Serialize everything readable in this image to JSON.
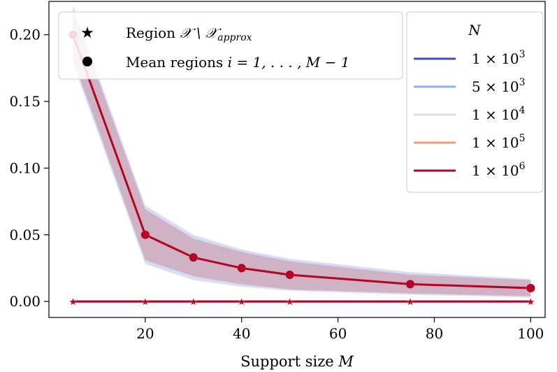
{
  "chart_data": {
    "type": "line",
    "xlabel_text": "Support size ",
    "xlabel_var": "M",
    "ylabel": "",
    "xlim": [
      0,
      103
    ],
    "ylim": [
      -0.012,
      0.225
    ],
    "xticks": [
      20,
      40,
      60,
      80,
      100
    ],
    "xtick_labels": [
      "20",
      "40",
      "60",
      "80",
      "100"
    ],
    "yticks": [
      0.0,
      0.05,
      0.1,
      0.15,
      0.2
    ],
    "ytick_labels": [
      "0.00",
      "0.05",
      "0.10",
      "0.15",
      "0.20"
    ],
    "grid": false,
    "x": [
      5,
      20,
      30,
      40,
      50,
      75,
      100
    ],
    "series": [
      {
        "name": "1 × 10^3",
        "color": "#3b4cc0",
        "mean_values": [
          0.2,
          0.05,
          0.033,
          0.025,
          0.02,
          0.013,
          0.01
        ],
        "band_lower": [
          0.178,
          0.028,
          0.016,
          0.011,
          0.008,
          0.005,
          0.003
        ],
        "band_upper": [
          0.222,
          0.072,
          0.05,
          0.039,
          0.032,
          0.022,
          0.017
        ],
        "star_values": [
          0,
          0,
          0,
          0,
          0,
          0,
          0
        ]
      },
      {
        "name": "5 × 10^3",
        "color": "#8db0fe",
        "mean_values": [
          0.2,
          0.05,
          0.033,
          0.025,
          0.02,
          0.013,
          0.01
        ],
        "band_lower": [
          0.18,
          0.03,
          0.018,
          0.012,
          0.009,
          0.006,
          0.004
        ],
        "band_upper": [
          0.22,
          0.07,
          0.048,
          0.038,
          0.031,
          0.021,
          0.016
        ],
        "star_values": [
          0,
          0,
          0,
          0,
          0,
          0,
          0
        ]
      },
      {
        "name": "1 × 10^4",
        "color": "#dddddd",
        "mean_values": [
          0.2,
          0.05,
          0.033,
          0.025,
          0.02,
          0.013,
          0.01
        ],
        "band_lower": [
          0.182,
          0.031,
          0.019,
          0.013,
          0.009,
          0.006,
          0.004
        ],
        "band_upper": [
          0.218,
          0.069,
          0.047,
          0.037,
          0.03,
          0.02,
          0.016
        ],
        "star_values": [
          0,
          0,
          0,
          0,
          0,
          0,
          0
        ]
      },
      {
        "name": "1 × 10^5",
        "color": "#f49a7b",
        "mean_values": [
          0.2,
          0.05,
          0.033,
          0.025,
          0.02,
          0.013,
          0.01
        ],
        "band_lower": [
          0.182,
          0.031,
          0.019,
          0.013,
          0.009,
          0.006,
          0.004
        ],
        "band_upper": [
          0.218,
          0.069,
          0.047,
          0.037,
          0.03,
          0.02,
          0.016
        ],
        "star_values": [
          0,
          0,
          0,
          0,
          0,
          0,
          0
        ]
      },
      {
        "name": "1 × 10^6",
        "color": "#b40426",
        "mean_values": [
          0.2,
          0.05,
          0.033,
          0.025,
          0.02,
          0.013,
          0.01
        ],
        "band_lower": [
          0.182,
          0.031,
          0.019,
          0.013,
          0.009,
          0.006,
          0.004
        ],
        "band_upper": [
          0.218,
          0.069,
          0.047,
          0.037,
          0.03,
          0.02,
          0.016
        ],
        "star_values": [
          0,
          0,
          0,
          0,
          0,
          0,
          0
        ]
      }
    ],
    "marker_legend": {
      "star_label_text": "Region ",
      "star_label_math": "𝒳 \\ 𝒳",
      "star_label_sub": "approx",
      "circle_label_text": "Mean regions ",
      "circle_label_math": "i = 1, . . . , M − 1"
    },
    "color_legend": {
      "title": "N",
      "entries": [
        {
          "mantissa": "1 × 10",
          "exp": "3"
        },
        {
          "mantissa": "5 × 10",
          "exp": "3"
        },
        {
          "mantissa": "1 × 10",
          "exp": "4"
        },
        {
          "mantissa": "1 × 10",
          "exp": "5"
        },
        {
          "mantissa": "1 × 10",
          "exp": "6"
        }
      ]
    },
    "legend_placement": [
      "top-center",
      "top-right"
    ]
  }
}
